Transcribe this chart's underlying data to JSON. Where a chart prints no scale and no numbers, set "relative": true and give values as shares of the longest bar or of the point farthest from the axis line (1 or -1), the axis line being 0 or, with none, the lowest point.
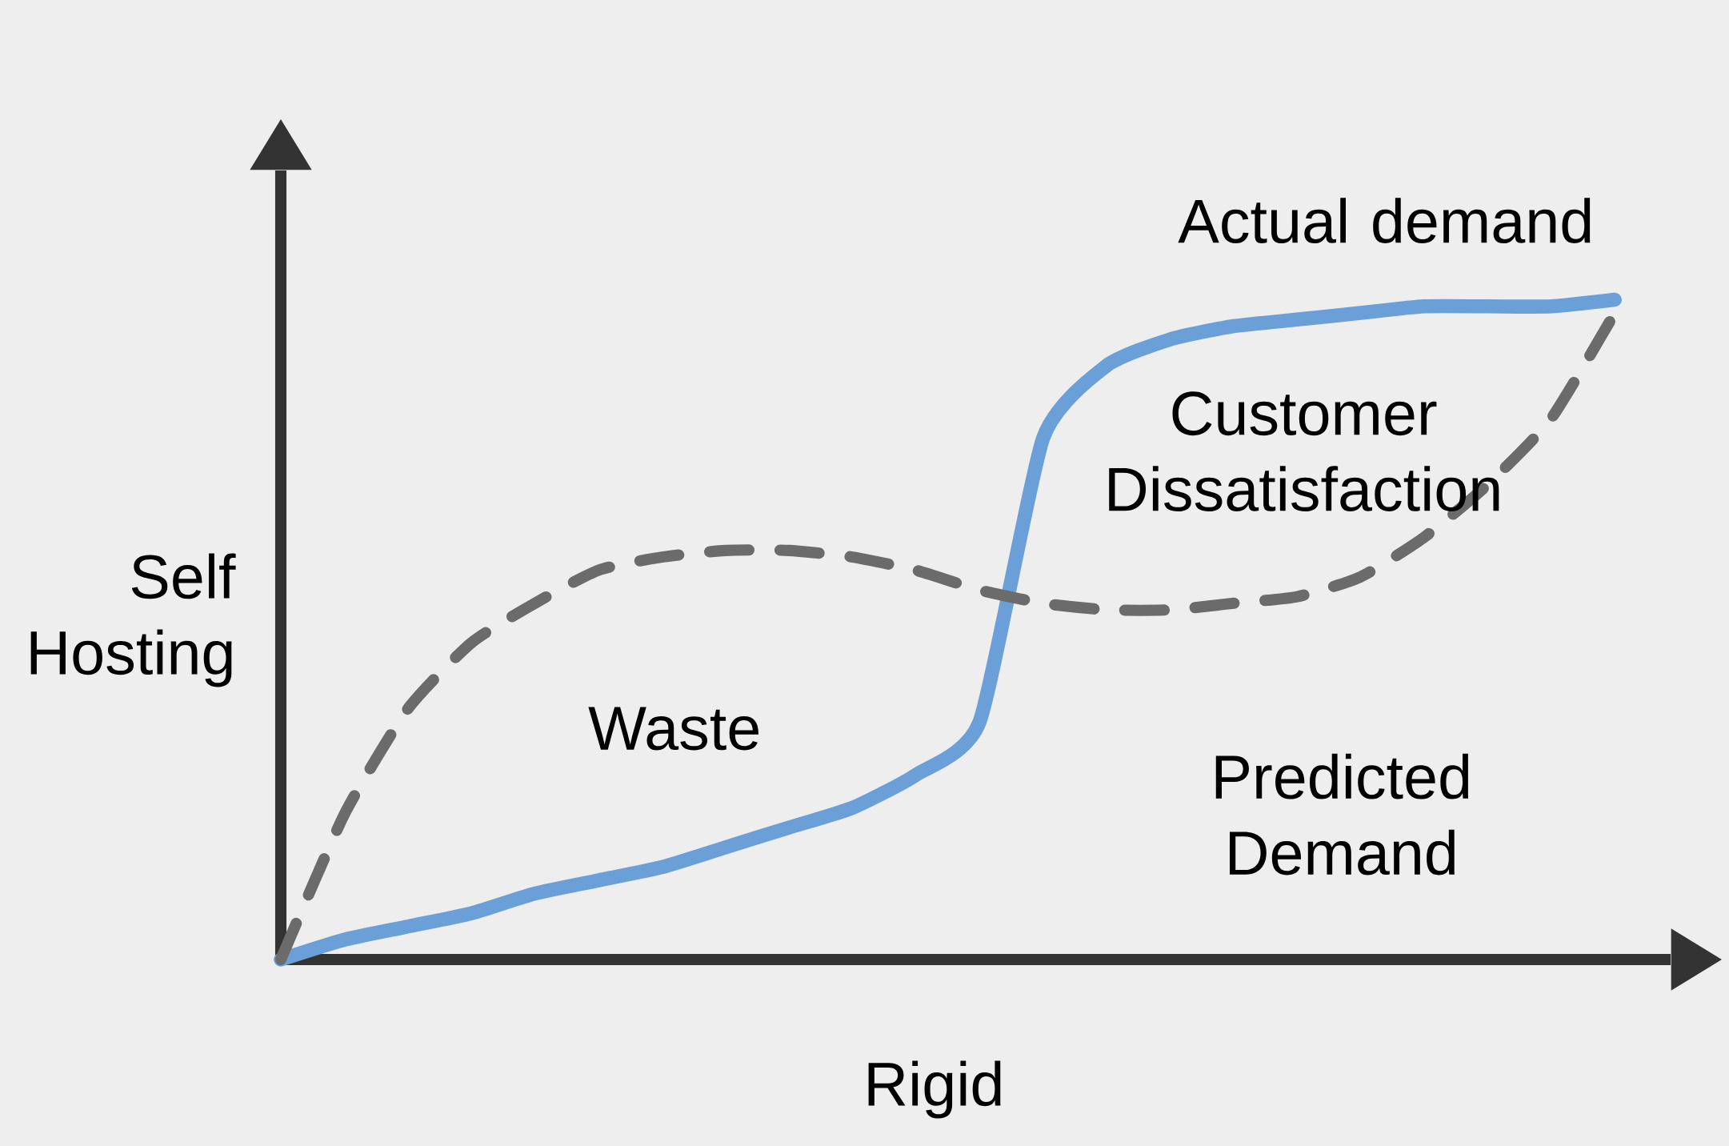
{
  "chart_data": {
    "type": "line",
    "relative": true,
    "xlabel": "Rigid",
    "ylabel": "Self Hosting",
    "legend": false,
    "categories": [
      null,
      null,
      null,
      null,
      null,
      null,
      null,
      null,
      null,
      null,
      null,
      null,
      null,
      null,
      null,
      null,
      null,
      null,
      null,
      null,
      null,
      null
    ],
    "series": [
      {
        "name": "Actual demand",
        "color": "#6a9fd8",
        "line_style": "solid",
        "values": [
          0,
          0.03,
          0.05,
          0.07,
          0.1,
          0.12,
          0.14,
          0.17,
          0.2,
          0.23,
          0.28,
          0.36,
          0.79,
          0.9,
          0.94,
          0.96,
          0.97,
          0.98,
          0.99,
          0.99,
          0.99,
          1
        ]
      },
      {
        "name": "Predicted Demand",
        "color": "#6b6b6b",
        "line_style": "dashed",
        "values": [
          0,
          0.22,
          0.38,
          0.48,
          0.54,
          0.59,
          0.61,
          0.62,
          0.62,
          0.61,
          0.59,
          0.56,
          0.54,
          0.53,
          0.53,
          0.54,
          0.55,
          0.58,
          0.64,
          0.72,
          0.82,
          0.98
        ]
      }
    ],
    "annotations": [
      "Waste",
      "Customer Dissatisfaction"
    ]
  }
}
